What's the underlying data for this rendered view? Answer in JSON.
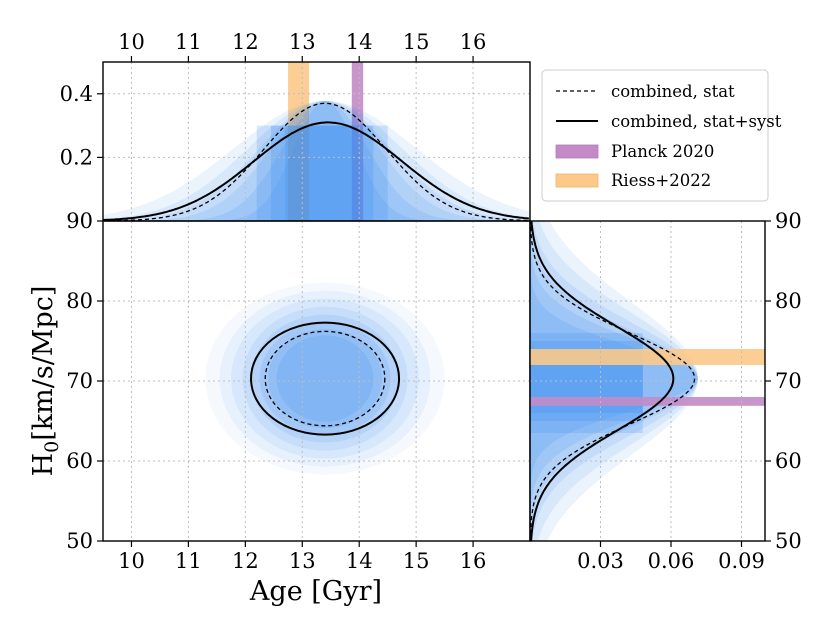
{
  "chart_data": [
    {
      "type": "scatter",
      "panel": "joint",
      "xlabel": "Age [Gyr]",
      "ylabel": "H",
      "ylabel_sub": "0",
      "ylabel_rest": "[km/s/Mpc]",
      "xlim": [
        9.5,
        17.0
      ],
      "ylim": [
        50,
        90
      ],
      "xticks": [
        "10",
        "11",
        "12",
        "13",
        "14",
        "15",
        "16"
      ],
      "yticks": [
        "50",
        "60",
        "70",
        "80",
        "90"
      ],
      "grid": true,
      "contours": [
        {
          "name": "combined, stat",
          "center_age": 13.4,
          "center_h0": 70.3,
          "half_width_age": 1.05,
          "half_height_h0": 5.9,
          "style": "dashed"
        },
        {
          "name": "combined, stat+syst",
          "center_age": 13.4,
          "center_h0": 70.3,
          "half_width_age": 1.3,
          "half_height_h0": 7.0,
          "style": "solid"
        }
      ]
    },
    {
      "type": "line",
      "panel": "top-marginal",
      "xlabel": "Age [Gyr]",
      "x_range": [
        9.5,
        17.0
      ],
      "y_range": [
        0,
        0.5
      ],
      "xticks_top": [
        "10",
        "11",
        "12",
        "13",
        "14",
        "15",
        "16"
      ],
      "yticks": [
        "0.2",
        "0.4"
      ],
      "series": [
        {
          "name": "combined, stat",
          "mean": 13.4,
          "sigma": 1.08,
          "peak": 0.37
        },
        {
          "name": "combined, stat+syst",
          "mean": 13.45,
          "sigma": 1.3,
          "peak": 0.31
        }
      ],
      "bands": [
        {
          "name": "Riess+2022",
          "from": 12.75,
          "to": 13.12
        },
        {
          "name": "Planck 2020",
          "from": 13.87,
          "to": 14.07
        }
      ]
    },
    {
      "type": "line",
      "panel": "right-marginal",
      "ylabel": "H0 [km/s/Mpc]",
      "x_range": [
        0,
        0.1
      ],
      "y_range": [
        50,
        90
      ],
      "xticks": [
        "0.03",
        "0.06",
        "0.09"
      ],
      "yticks_right": [
        "50",
        "60",
        "70",
        "80",
        "90"
      ],
      "series": [
        {
          "name": "combined, stat",
          "mean": 70.3,
          "sigma": 5.7,
          "peak": 0.07
        },
        {
          "name": "combined, stat+syst",
          "mean": 70.3,
          "sigma": 6.5,
          "peak": 0.061
        }
      ],
      "bands": [
        {
          "name": "Riess+2022",
          "from": 72.0,
          "to": 74.0
        },
        {
          "name": "Planck 2020",
          "from": 66.9,
          "to": 68.0
        }
      ]
    }
  ],
  "legend": {
    "position": "top-right",
    "items": [
      {
        "label": "combined, stat",
        "kind": "dashed-line"
      },
      {
        "label": "combined, stat+syst",
        "kind": "solid-line"
      },
      {
        "label": "Planck 2020",
        "kind": "patch",
        "color": "#c28bc8"
      },
      {
        "label": "Riess+2022",
        "kind": "patch",
        "color": "#fcc98a"
      }
    ]
  },
  "colors": {
    "cloud": "#3d8ef0",
    "planck": "#c28bc8",
    "riess": "#fcc98a"
  }
}
